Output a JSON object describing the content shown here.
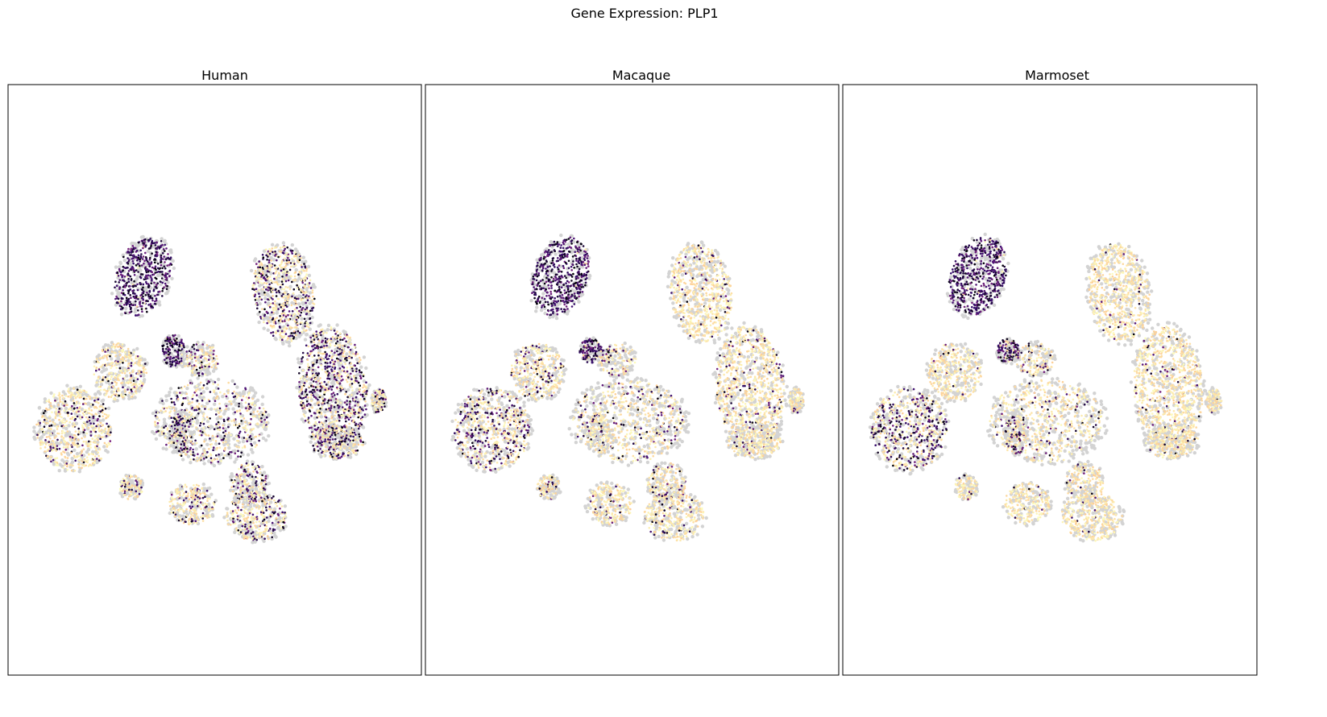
{
  "figure": {
    "suptitle": "Gene Expression: PLP1",
    "background_color": "#ffffff",
    "unexpressed_color": "#d3d3d3",
    "colormap": "magma",
    "colormap_stops": [
      "#000004",
      "#3b0f70",
      "#8c2981",
      "#de4968",
      "#fe9f6d",
      "#fcfdbf"
    ]
  },
  "chart_data": [
    {
      "type": "scatter",
      "title": "Human",
      "xlabel": "",
      "ylabel": "",
      "axes_ticks": false,
      "grid": false,
      "legend": "none",
      "clusters": [
        {
          "cx": 0.3,
          "cy": 0.75,
          "rx": 0.07,
          "ry": 0.1,
          "rot": -25,
          "expression": 0.02,
          "density": 1.0
        },
        {
          "cx": 0.38,
          "cy": 0.57,
          "rx": 0.03,
          "ry": 0.04,
          "rot": 0,
          "expression": 0.05,
          "density": 0.9
        },
        {
          "cx": 0.67,
          "cy": 0.71,
          "rx": 0.08,
          "ry": 0.12,
          "rot": 10,
          "expression": 0.55,
          "density": 0.9
        },
        {
          "cx": 0.8,
          "cy": 0.48,
          "rx": 0.09,
          "ry": 0.15,
          "rot": 5,
          "expression": 0.45,
          "density": 0.9
        },
        {
          "cx": 0.24,
          "cy": 0.52,
          "rx": 0.07,
          "ry": 0.07,
          "rot": 0,
          "expression": 0.85,
          "density": 0.8
        },
        {
          "cx": 0.12,
          "cy": 0.38,
          "rx": 0.1,
          "ry": 0.1,
          "rot": -10,
          "expression": 0.8,
          "density": 0.8
        },
        {
          "cx": 0.48,
          "cy": 0.4,
          "rx": 0.15,
          "ry": 0.1,
          "rot": 0,
          "expression": 0.6,
          "density": 0.5
        },
        {
          "cx": 0.58,
          "cy": 0.25,
          "rx": 0.05,
          "ry": 0.05,
          "rot": 0,
          "expression": 0.6,
          "density": 0.7
        },
        {
          "cx": 0.6,
          "cy": 0.17,
          "rx": 0.08,
          "ry": 0.06,
          "rot": 0,
          "expression": 0.65,
          "density": 0.8
        },
        {
          "cx": 0.43,
          "cy": 0.2,
          "rx": 0.06,
          "ry": 0.05,
          "rot": 0,
          "expression": 0.75,
          "density": 0.8
        },
        {
          "cx": 0.27,
          "cy": 0.24,
          "rx": 0.03,
          "ry": 0.03,
          "rot": 0,
          "expression": 0.8,
          "density": 0.7
        },
        {
          "cx": 0.4,
          "cy": 0.37,
          "rx": 0.03,
          "ry": 0.05,
          "rot": 0,
          "expression": 0.35,
          "density": 0.7
        },
        {
          "cx": 0.81,
          "cy": 0.35,
          "rx": 0.07,
          "ry": 0.04,
          "rot": 0,
          "expression": 0.55,
          "density": 0.8
        },
        {
          "cx": 0.92,
          "cy": 0.45,
          "rx": 0.02,
          "ry": 0.03,
          "rot": 0,
          "expression": 0.6,
          "density": 0.7
        },
        {
          "cx": 0.45,
          "cy": 0.55,
          "rx": 0.05,
          "ry": 0.04,
          "rot": 0,
          "expression": 0.75,
          "density": 0.6
        }
      ]
    },
    {
      "type": "scatter",
      "title": "Macaque",
      "xlabel": "",
      "ylabel": "",
      "axes_ticks": false,
      "grid": false,
      "legend": "none",
      "clusters": [
        {
          "cx": 0.3,
          "cy": 0.75,
          "rx": 0.07,
          "ry": 0.1,
          "rot": -25,
          "expression": 0.01,
          "density": 1.0
        },
        {
          "cx": 0.38,
          "cy": 0.57,
          "rx": 0.03,
          "ry": 0.03,
          "rot": 0,
          "expression": 0.1,
          "density": 0.9
        },
        {
          "cx": 0.67,
          "cy": 0.71,
          "rx": 0.08,
          "ry": 0.12,
          "rot": 10,
          "expression": 0.9,
          "density": 0.9
        },
        {
          "cx": 0.8,
          "cy": 0.48,
          "rx": 0.09,
          "ry": 0.15,
          "rot": 5,
          "expression": 0.88,
          "density": 0.9
        },
        {
          "cx": 0.24,
          "cy": 0.52,
          "rx": 0.07,
          "ry": 0.07,
          "rot": 0,
          "expression": 0.8,
          "density": 0.8
        },
        {
          "cx": 0.12,
          "cy": 0.38,
          "rx": 0.1,
          "ry": 0.1,
          "rot": -10,
          "expression": 0.6,
          "density": 0.8
        },
        {
          "cx": 0.48,
          "cy": 0.4,
          "rx": 0.15,
          "ry": 0.1,
          "rot": 0,
          "expression": 0.8,
          "density": 0.5
        },
        {
          "cx": 0.58,
          "cy": 0.25,
          "rx": 0.05,
          "ry": 0.05,
          "rot": 0,
          "expression": 0.85,
          "density": 0.7
        },
        {
          "cx": 0.6,
          "cy": 0.17,
          "rx": 0.08,
          "ry": 0.06,
          "rot": 0,
          "expression": 0.85,
          "density": 0.8
        },
        {
          "cx": 0.43,
          "cy": 0.2,
          "rx": 0.06,
          "ry": 0.05,
          "rot": 0,
          "expression": 0.9,
          "density": 0.8
        },
        {
          "cx": 0.27,
          "cy": 0.24,
          "rx": 0.03,
          "ry": 0.03,
          "rot": 0,
          "expression": 0.85,
          "density": 0.7
        },
        {
          "cx": 0.4,
          "cy": 0.37,
          "rx": 0.03,
          "ry": 0.05,
          "rot": 0,
          "expression": 0.85,
          "density": 0.7
        },
        {
          "cx": 0.81,
          "cy": 0.35,
          "rx": 0.07,
          "ry": 0.04,
          "rot": 0,
          "expression": 0.9,
          "density": 0.8
        },
        {
          "cx": 0.92,
          "cy": 0.45,
          "rx": 0.02,
          "ry": 0.03,
          "rot": 0,
          "expression": 0.9,
          "density": 0.7
        },
        {
          "cx": 0.45,
          "cy": 0.55,
          "rx": 0.05,
          "ry": 0.04,
          "rot": 0,
          "expression": 0.7,
          "density": 0.6
        }
      ]
    },
    {
      "type": "scatter",
      "title": "Marmoset",
      "xlabel": "",
      "ylabel": "",
      "axes_ticks": false,
      "grid": false,
      "legend": "none",
      "clusters": [
        {
          "cx": 0.3,
          "cy": 0.75,
          "rx": 0.07,
          "ry": 0.1,
          "rot": -25,
          "expression": 0.01,
          "density": 1.0
        },
        {
          "cx": 0.38,
          "cy": 0.57,
          "rx": 0.03,
          "ry": 0.03,
          "rot": 0,
          "expression": 0.15,
          "density": 0.9
        },
        {
          "cx": 0.67,
          "cy": 0.71,
          "rx": 0.08,
          "ry": 0.12,
          "rot": 10,
          "expression": 0.95,
          "density": 0.9
        },
        {
          "cx": 0.8,
          "cy": 0.48,
          "rx": 0.09,
          "ry": 0.15,
          "rot": 5,
          "expression": 0.95,
          "density": 0.9
        },
        {
          "cx": 0.24,
          "cy": 0.52,
          "rx": 0.07,
          "ry": 0.07,
          "rot": 0,
          "expression": 0.95,
          "density": 0.8
        },
        {
          "cx": 0.12,
          "cy": 0.38,
          "rx": 0.1,
          "ry": 0.1,
          "rot": -10,
          "expression": 0.55,
          "density": 0.8
        },
        {
          "cx": 0.48,
          "cy": 0.4,
          "rx": 0.15,
          "ry": 0.1,
          "rot": 0,
          "expression": 0.85,
          "density": 0.5
        },
        {
          "cx": 0.58,
          "cy": 0.25,
          "rx": 0.05,
          "ry": 0.05,
          "rot": 0,
          "expression": 0.9,
          "density": 0.7
        },
        {
          "cx": 0.6,
          "cy": 0.17,
          "rx": 0.08,
          "ry": 0.06,
          "rot": 0,
          "expression": 0.95,
          "density": 0.8
        },
        {
          "cx": 0.43,
          "cy": 0.2,
          "rx": 0.06,
          "ry": 0.05,
          "rot": 0,
          "expression": 0.95,
          "density": 0.8
        },
        {
          "cx": 0.27,
          "cy": 0.24,
          "rx": 0.03,
          "ry": 0.03,
          "rot": 0,
          "expression": 0.9,
          "density": 0.7
        },
        {
          "cx": 0.4,
          "cy": 0.37,
          "rx": 0.03,
          "ry": 0.05,
          "rot": 0,
          "expression": 0.5,
          "density": 0.7
        },
        {
          "cx": 0.81,
          "cy": 0.35,
          "rx": 0.07,
          "ry": 0.04,
          "rot": 0,
          "expression": 0.95,
          "density": 0.8
        },
        {
          "cx": 0.92,
          "cy": 0.45,
          "rx": 0.02,
          "ry": 0.03,
          "rot": 0,
          "expression": 0.95,
          "density": 0.7
        },
        {
          "cx": 0.45,
          "cy": 0.55,
          "rx": 0.05,
          "ry": 0.04,
          "rot": 0,
          "expression": 0.8,
          "density": 0.6
        }
      ]
    }
  ]
}
